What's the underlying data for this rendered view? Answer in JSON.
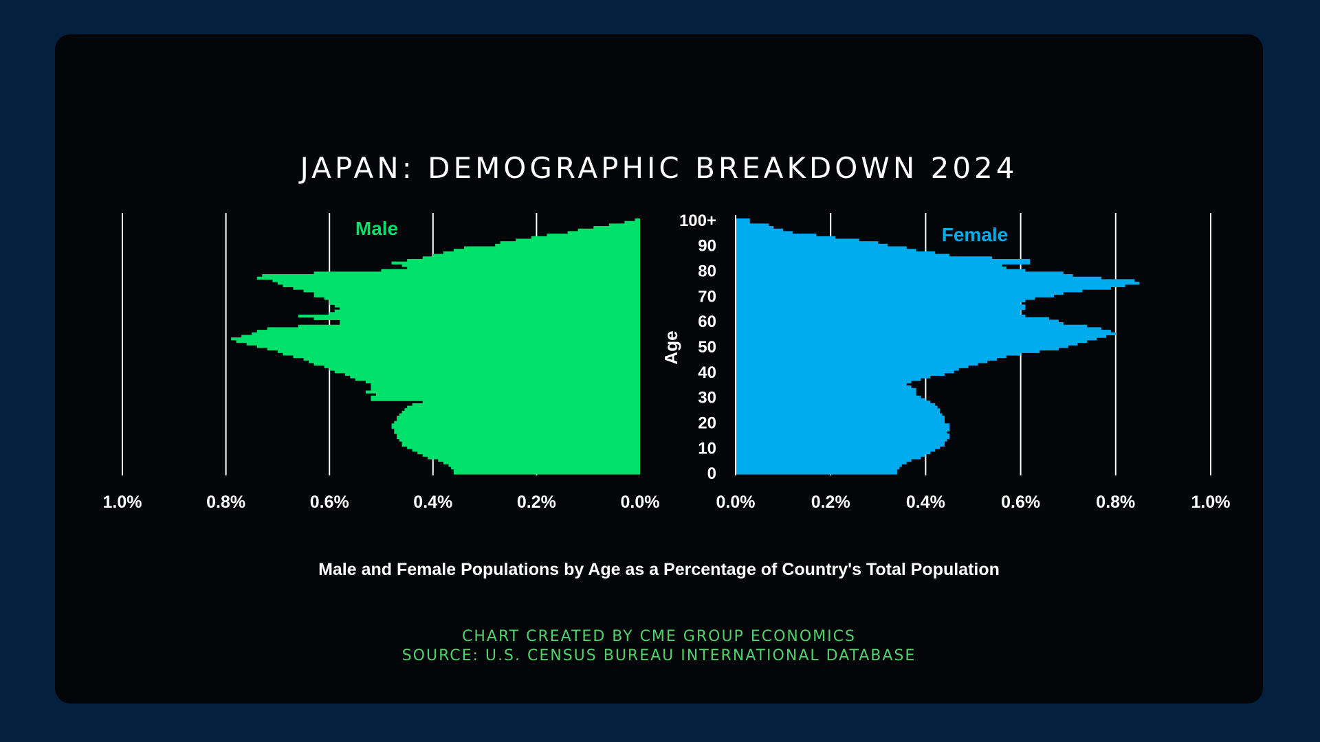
{
  "chart_data": {
    "type": "bar",
    "subtype": "population-pyramid",
    "title": "JAPAN: DEMOGRAPHIC BREAKDOWN 2024",
    "xlabel": "Male and Female Populations by Age as a Percentage of Country's Total Population",
    "ylabel": "Age",
    "age_ticks": [
      "0",
      "10",
      "20",
      "30",
      "40",
      "50",
      "60",
      "70",
      "80",
      "90",
      "100+"
    ],
    "male_x_ticks": [
      "1.0%",
      "0.8%",
      "0.6%",
      "0.4%",
      "0.2%",
      "0.0%"
    ],
    "female_x_ticks": [
      "0.0%",
      "0.2%",
      "0.4%",
      "0.6%",
      "0.8%",
      "1.0%"
    ],
    "xlim": [
      0,
      1.0
    ],
    "ages": [
      0,
      1,
      2,
      3,
      4,
      5,
      6,
      7,
      8,
      9,
      10,
      11,
      12,
      13,
      14,
      15,
      16,
      17,
      18,
      19,
      20,
      21,
      22,
      23,
      24,
      25,
      26,
      27,
      28,
      29,
      30,
      31,
      32,
      33,
      34,
      35,
      36,
      37,
      38,
      39,
      40,
      41,
      42,
      43,
      44,
      45,
      46,
      47,
      48,
      49,
      50,
      51,
      52,
      53,
      54,
      55,
      56,
      57,
      58,
      59,
      60,
      61,
      62,
      63,
      64,
      65,
      66,
      67,
      68,
      69,
      70,
      71,
      72,
      73,
      74,
      75,
      76,
      77,
      78,
      79,
      80,
      81,
      82,
      83,
      84,
      85,
      86,
      87,
      88,
      89,
      90,
      91,
      92,
      93,
      94,
      95,
      96,
      97,
      98,
      99,
      100
    ],
    "series": [
      {
        "name": "Male",
        "color": "#00e16b",
        "values": [
          0.36,
          0.36,
          0.365,
          0.37,
          0.38,
          0.39,
          0.41,
          0.42,
          0.43,
          0.44,
          0.45,
          0.46,
          0.46,
          0.465,
          0.47,
          0.47,
          0.475,
          0.475,
          0.48,
          0.48,
          0.475,
          0.47,
          0.47,
          0.465,
          0.46,
          0.455,
          0.45,
          0.44,
          0.42,
          0.52,
          0.52,
          0.51,
          0.53,
          0.52,
          0.52,
          0.52,
          0.53,
          0.55,
          0.56,
          0.57,
          0.59,
          0.6,
          0.61,
          0.63,
          0.64,
          0.65,
          0.67,
          0.69,
          0.7,
          0.72,
          0.74,
          0.76,
          0.78,
          0.79,
          0.77,
          0.75,
          0.74,
          0.72,
          0.66,
          0.58,
          0.58,
          0.63,
          0.66,
          0.6,
          0.59,
          0.58,
          0.59,
          0.6,
          0.6,
          0.61,
          0.63,
          0.63,
          0.65,
          0.67,
          0.69,
          0.7,
          0.71,
          0.74,
          0.73,
          0.63,
          0.5,
          0.45,
          0.46,
          0.48,
          0.45,
          0.42,
          0.4,
          0.38,
          0.36,
          0.34,
          0.28,
          0.27,
          0.24,
          0.21,
          0.18,
          0.14,
          0.12,
          0.09,
          0.06,
          0.03,
          0.01
        ]
      },
      {
        "name": "Female",
        "color": "#00acee",
        "values": [
          0.34,
          0.34,
          0.345,
          0.35,
          0.36,
          0.37,
          0.39,
          0.4,
          0.41,
          0.42,
          0.43,
          0.44,
          0.44,
          0.445,
          0.45,
          0.45,
          0.445,
          0.45,
          0.45,
          0.45,
          0.44,
          0.44,
          0.44,
          0.435,
          0.43,
          0.43,
          0.425,
          0.42,
          0.41,
          0.4,
          0.39,
          0.38,
          0.38,
          0.38,
          0.37,
          0.36,
          0.37,
          0.39,
          0.41,
          0.44,
          0.46,
          0.47,
          0.49,
          0.51,
          0.53,
          0.55,
          0.57,
          0.6,
          0.64,
          0.68,
          0.7,
          0.72,
          0.74,
          0.76,
          0.78,
          0.8,
          0.79,
          0.77,
          0.74,
          0.69,
          0.68,
          0.66,
          0.61,
          0.6,
          0.6,
          0.61,
          0.61,
          0.6,
          0.61,
          0.63,
          0.67,
          0.69,
          0.73,
          0.79,
          0.82,
          0.85,
          0.84,
          0.77,
          0.71,
          0.69,
          0.61,
          0.57,
          0.56,
          0.62,
          0.62,
          0.54,
          0.45,
          0.42,
          0.38,
          0.36,
          0.32,
          0.3,
          0.26,
          0.21,
          0.17,
          0.12,
          0.1,
          0.08,
          0.07,
          0.03,
          0.03
        ]
      }
    ]
  },
  "credits": {
    "line1": "CHART CREATED BY CME GROUP ECONOMICS",
    "line2": "SOURCE: U.S. CENSUS BUREAU INTERNATIONAL DATABASE"
  }
}
